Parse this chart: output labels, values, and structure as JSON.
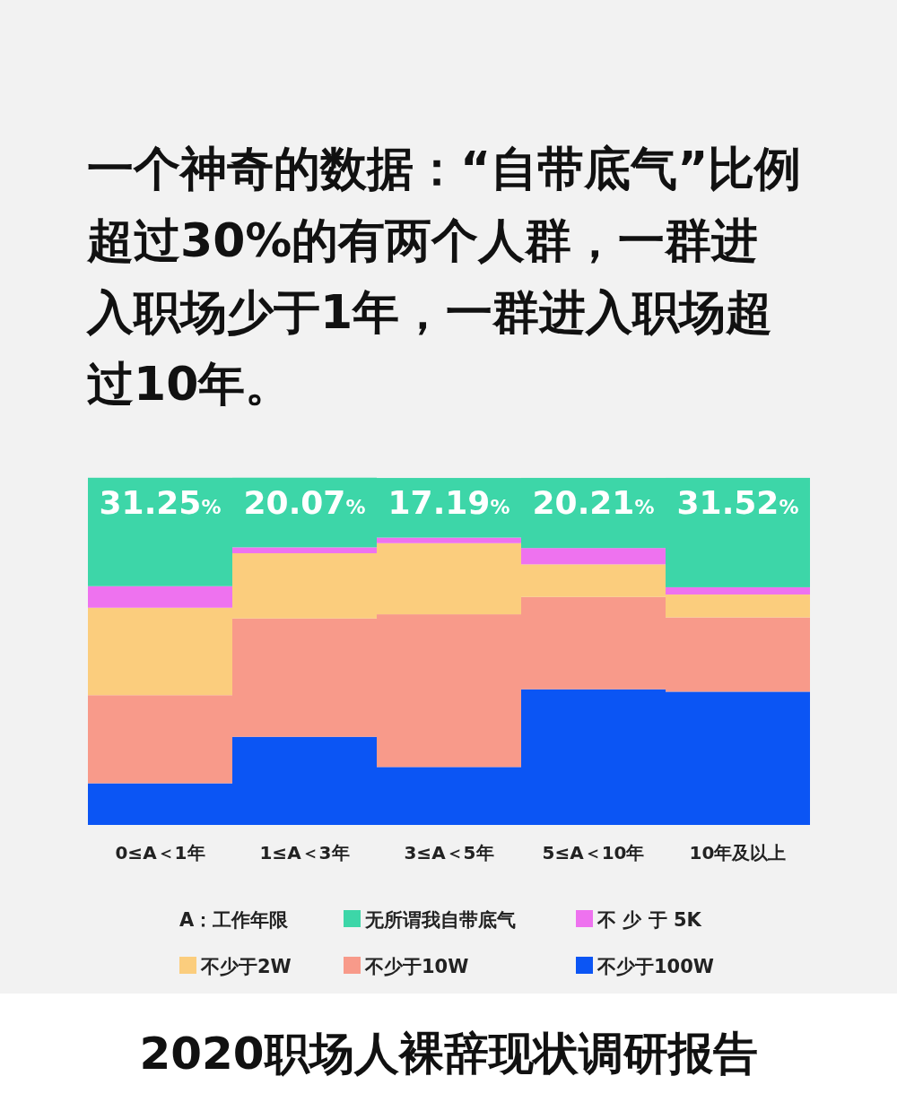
{
  "chart_data": {
    "type": "bar",
    "stacked": true,
    "title": "一个神奇的数据：“自带底气”比例超过30%的有两个人群，一群进入职场少于1年，一群进入职场超过10年。",
    "categories": [
      "0≤A＜1年",
      "1≤A＜3年",
      "3≤A＜5年",
      "5≤A＜10年",
      "10年及以上"
    ],
    "series": [
      {
        "name": "不少于100W",
        "color": "#0b55f4",
        "values": [
          12.0,
          25.4,
          16.7,
          39.1,
          38.4
        ]
      },
      {
        "name": "不少于10W",
        "color": "#f89a8a",
        "values": [
          25.4,
          34.1,
          44.0,
          26.6,
          21.4
        ]
      },
      {
        "name": "不少于2W",
        "color": "#fbcd7d",
        "values": [
          25.2,
          18.8,
          20.5,
          9.4,
          6.6
        ]
      },
      {
        "name": "不 少 于 5K",
        "color": "#ee72ef",
        "values": [
          6.2,
          1.7,
          1.6,
          4.7,
          2.1
        ]
      },
      {
        "name": "无所谓我自带底气",
        "color": "#3dd6a8",
        "values": [
          31.25,
          20.07,
          17.19,
          20.21,
          31.52
        ],
        "value_labels": [
          "31.25%",
          "20.07%",
          "17.19%",
          "20.21%",
          "31.52%"
        ]
      }
    ],
    "ylim": [
      0,
      100
    ],
    "tick_labels": "x",
    "legend": "bottom",
    "legend_title": "A：工作年限",
    "annotations": [
      "2020职场人裸辞现状调研报告"
    ]
  }
}
